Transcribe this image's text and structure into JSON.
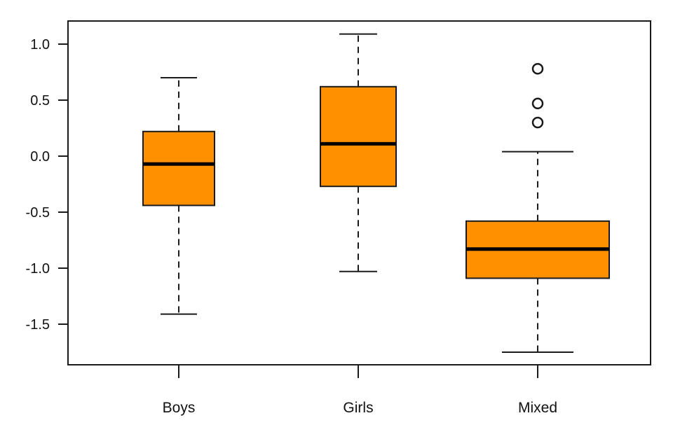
{
  "chart_data": {
    "type": "box",
    "categories": [
      "Boys",
      "Girls",
      "Mixed"
    ],
    "boxes": [
      {
        "category": "Boys",
        "whisker_low": -1.41,
        "q1": -0.44,
        "median": -0.07,
        "q3": 0.22,
        "whisker_high": 0.7,
        "outliers": []
      },
      {
        "category": "Girls",
        "whisker_low": -1.03,
        "q1": -0.27,
        "median": 0.11,
        "q3": 0.62,
        "whisker_high": 1.09,
        "outliers": []
      },
      {
        "category": "Mixed",
        "whisker_low": -1.75,
        "q1": -1.09,
        "median": -0.83,
        "q3": -0.58,
        "whisker_high": 0.04,
        "outliers": [
          0.3,
          0.47,
          0.78
        ]
      }
    ],
    "y_ticks": [
      1.0,
      0.5,
      0.0,
      -0.5,
      -1.0,
      -1.5
    ],
    "y_tick_labels": [
      "1.0",
      "0.5",
      "0.0",
      "-0.5",
      "-1.0",
      "-1.5"
    ],
    "ylim": [
      -1.85,
      1.2
    ],
    "title": "",
    "xlabel": "",
    "ylabel": "",
    "grid": false,
    "colors": {
      "box_fill": "#ff9100",
      "stroke": "#1a1a1a",
      "median": "#000000"
    }
  }
}
